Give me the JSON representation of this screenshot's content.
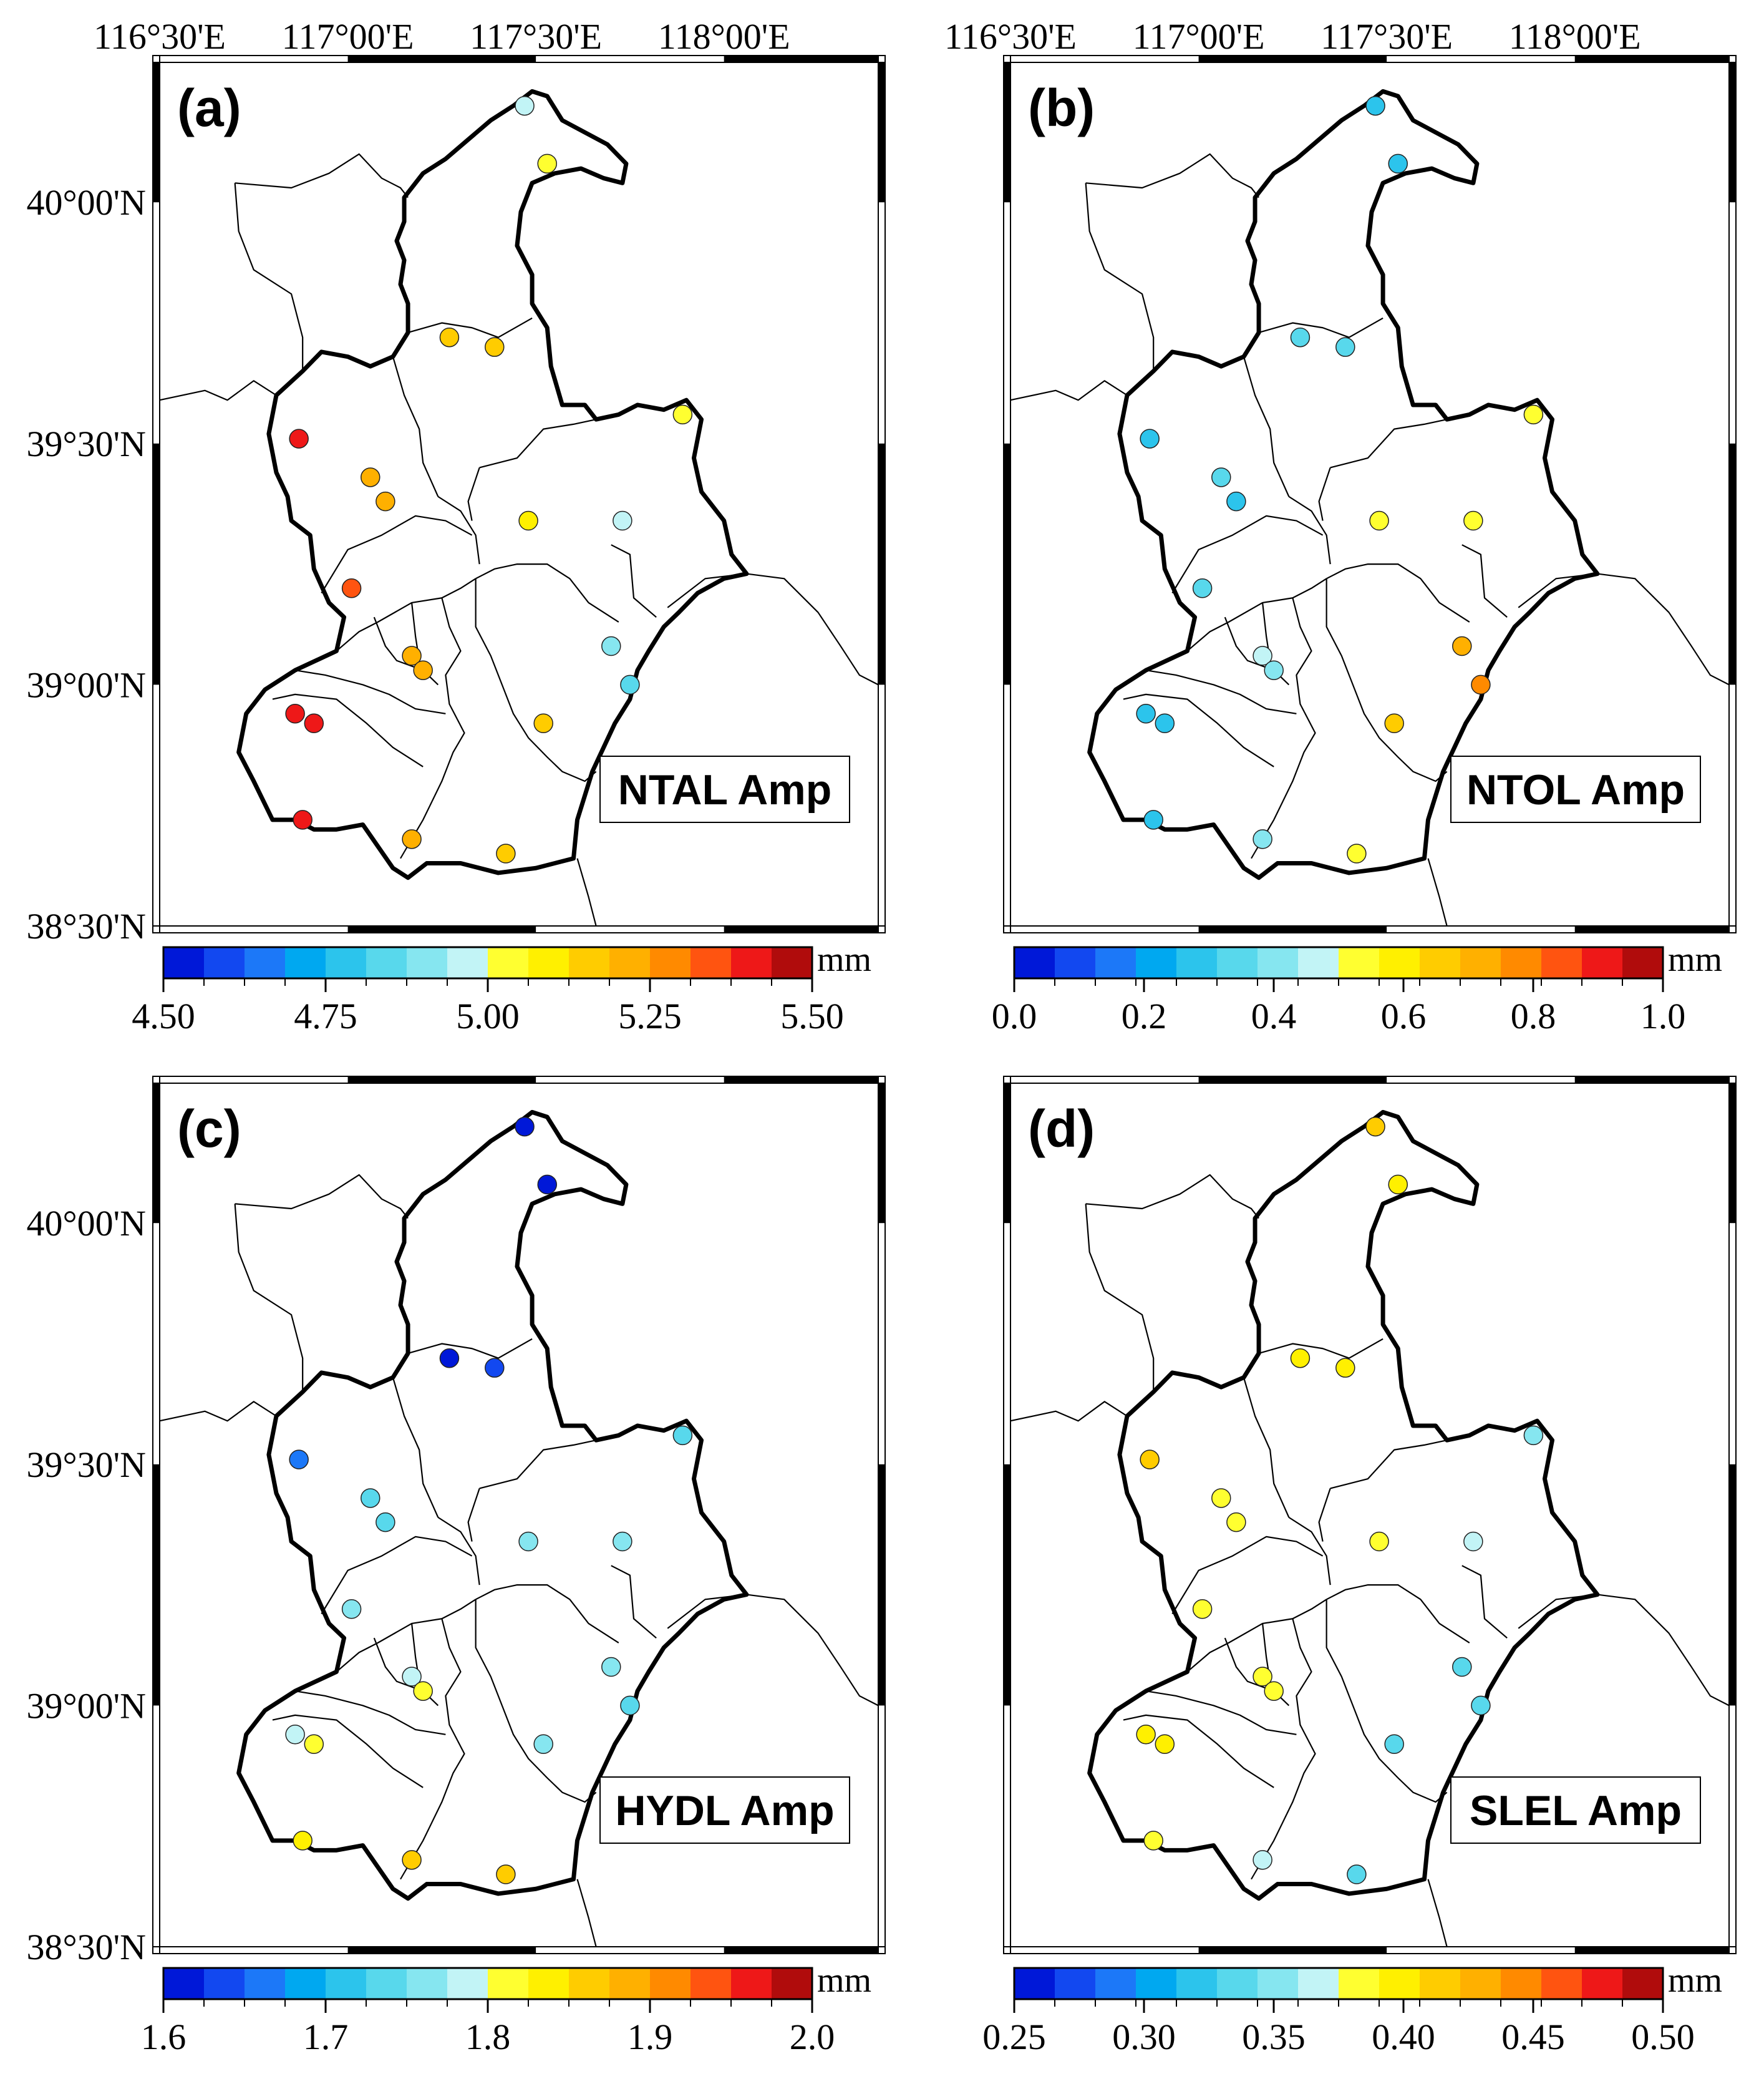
{
  "figure": {
    "lon_labels": [
      "116°30'E",
      "117°00'E",
      "117°30'E",
      "118°00'E"
    ],
    "lat_labels": [
      "40°00'N",
      "39°30'N",
      "39°00'N",
      "38°30'N"
    ],
    "unit": "mm",
    "boundary_color": "#000000",
    "stations": [
      {
        "id": 1,
        "lon": 117.47,
        "lat": 40.2
      },
      {
        "id": 2,
        "lon": 117.53,
        "lat": 40.08
      },
      {
        "id": 3,
        "lon": 117.27,
        "lat": 39.72
      },
      {
        "id": 4,
        "lon": 117.39,
        "lat": 39.7
      },
      {
        "id": 5,
        "lon": 117.89,
        "lat": 39.56
      },
      {
        "id": 6,
        "lon": 116.87,
        "lat": 39.51
      },
      {
        "id": 7,
        "lon": 117.06,
        "lat": 39.43
      },
      {
        "id": 8,
        "lon": 117.1,
        "lat": 39.38
      },
      {
        "id": 9,
        "lon": 117.48,
        "lat": 39.34
      },
      {
        "id": 10,
        "lon": 117.73,
        "lat": 39.34
      },
      {
        "id": 11,
        "lon": 117.01,
        "lat": 39.2
      },
      {
        "id": 12,
        "lon": 117.7,
        "lat": 39.08
      },
      {
        "id": 13,
        "lon": 117.17,
        "lat": 39.06
      },
      {
        "id": 14,
        "lon": 117.2,
        "lat": 39.03
      },
      {
        "id": 15,
        "lon": 117.75,
        "lat": 39.0
      },
      {
        "id": 16,
        "lon": 116.86,
        "lat": 38.94
      },
      {
        "id": 17,
        "lon": 116.91,
        "lat": 38.92
      },
      {
        "id": 18,
        "lon": 117.52,
        "lat": 38.92
      },
      {
        "id": 19,
        "lon": 116.88,
        "lat": 38.72
      },
      {
        "id": 20,
        "lon": 117.17,
        "lat": 38.68
      },
      {
        "id": 21,
        "lon": 117.42,
        "lat": 38.65
      }
    ],
    "panels": [
      {
        "id": "a",
        "label": "(a)",
        "title": "NTAL Amp",
        "colorbar": {
          "range": [
            4.5,
            5.5
          ],
          "ticks": [
            "4.50",
            "4.75",
            "5.00",
            "5.25",
            "5.50"
          ]
        },
        "values": [
          4.97,
          5.06,
          5.16,
          5.16,
          5.06,
          5.38,
          5.22,
          5.22,
          5.08,
          4.97,
          5.32,
          4.88,
          5.2,
          5.2,
          4.85,
          5.42,
          5.41,
          5.16,
          5.42,
          5.2,
          5.16
        ]
      },
      {
        "id": "b",
        "label": "(b)",
        "title": "NTOL Amp",
        "colorbar": {
          "range": [
            0.0,
            1.0
          ],
          "ticks": [
            "0.0",
            "0.2",
            "0.4",
            "0.6",
            "0.8",
            "1.0"
          ]
        },
        "values": [
          0.28,
          0.28,
          0.32,
          0.32,
          0.56,
          0.28,
          0.32,
          0.28,
          0.56,
          0.56,
          0.32,
          0.73,
          0.44,
          0.38,
          0.78,
          0.28,
          0.28,
          0.63,
          0.28,
          0.38,
          0.56
        ]
      },
      {
        "id": "c",
        "label": "(c)",
        "title": "HYDL Amp",
        "colorbar": {
          "range": [
            1.6,
            2.0
          ],
          "ticks": [
            "1.6",
            "1.7",
            "1.8",
            "1.9",
            "2.0"
          ]
        },
        "values": [
          1.61,
          1.61,
          1.61,
          1.63,
          1.74,
          1.66,
          1.74,
          1.74,
          1.77,
          1.77,
          1.77,
          1.77,
          1.79,
          1.82,
          1.74,
          1.79,
          1.82,
          1.77,
          1.83,
          1.87,
          1.85
        ]
      },
      {
        "id": "d",
        "label": "(d)",
        "title": "SLEL Amp",
        "colorbar": {
          "range": [
            0.25,
            0.5
          ],
          "ticks": [
            "0.25",
            "0.30",
            "0.35",
            "0.40",
            "0.45",
            "0.50"
          ]
        },
        "values": [
          0.42,
          0.4,
          0.4,
          0.4,
          0.35,
          0.42,
          0.39,
          0.39,
          0.39,
          0.36,
          0.39,
          0.34,
          0.39,
          0.39,
          0.34,
          0.4,
          0.4,
          0.34,
          0.39,
          0.36,
          0.34
        ]
      }
    ]
  }
}
